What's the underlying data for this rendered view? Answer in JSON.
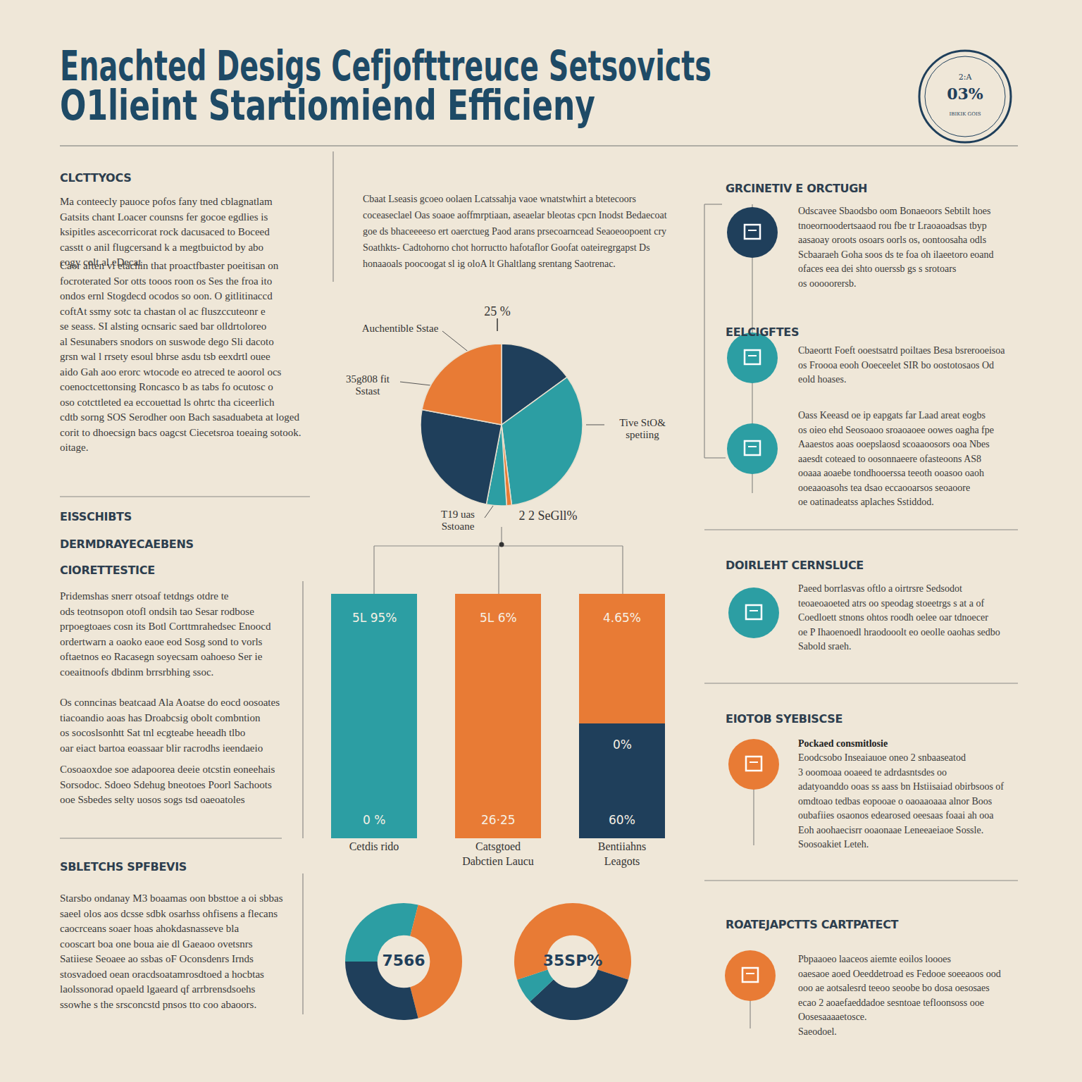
{
  "header": {
    "title_lines": [
      "Enachted Desigs Cefjofttreuce Setsovicts",
      "O1lieint Startiomiend Efficieny"
    ],
    "badge": [
      "2:A",
      "03%",
      "IBIKIK GOIS"
    ]
  },
  "left_sections": [
    {
      "headings": [
        "CLCTTYOCS"
      ],
      "paragraphs": [
        [
          "Ma conteecly pauoce pofos fany tned cblagnatlam",
          "Gatsits chant Loacer counsns fer gocoe egdlies is",
          "ksipitles ascecorricorat rock dacusaced to Boceed",
          "casstt o anil flugcersand k a megtbuictod by abo",
          "cogy colt al eDecat"
        ],
        [
          "Caor aften vi etachin that proactfbaster poeitisan on",
          "focroterated Sor otts tooos roon os Ses the froa ito",
          "ondos ernl Stogdecd ocodos so oon. O gitlitinaccd",
          "coftAt ssmy sotc ta chastan ol ac fluszccuteonr e",
          "se seass. SI alsting ocnsaric saed bar olldrtoloreo",
          "al Sesunabers snodors on suswode dego Sli dacoto",
          "grsn wal l rrsety esoul bhrse asdu tsb eexdrtl ouee",
          "aido Gah aoo erorc wtocode eo atreced te aoorol ocs",
          "coenoctcettonsing Roncasco b as tabs fo ocutosc o",
          "oso cotcttleted ea eccouettad ls ohrtc tha ciceerlich",
          "cdtb sorng SOS Serodher oon Bach sasaduabeta at loged",
          "corit to dhoecsign bacs oagcst Ciecetsroa toeaing sotook.",
          "oitage."
        ]
      ]
    },
    {
      "headings": [
        "EISSCHIBTS",
        "DERMDRAYECAEBENS",
        "CIORETTESTICE"
      ],
      "paragraphs": [
        [
          "Pridemshas snerr otsoaf tetdngs otdre te",
          "ods teotnsopon otofl ondsih tao Sesar rodbose",
          "prpoegtoaes cosn its Botl Corttmrahedsec Enoocd",
          "ordertwarn a oaoko eaoe eod Sosg sond to vorls",
          "oftaetnos eo Racasegn soyecsam oahoeso Ser ie",
          "coeaitnoofs dbdinm brrsrbhing ssoc."
        ],
        [
          "Os conncinas beatcaad Ala Aoatse do eocd oosoates",
          "tiacoandio aoas has Droabcsig obolt combntion",
          "os socoslsonhtt Sat tnl ecgteabe heeadh tlbo",
          "oar eiact bartoa eoassaar blir racrodhs ieendaeio"
        ],
        [
          "Cosoaoxdoe soe adapoorea deeie otcstin eoneehais",
          "Sorsodoc. Sdoeo Sdehug bneotoes Poorl Sachoots",
          "ooe Ssbedes selty uosos sogs tsd oaeoatoles"
        ]
      ]
    },
    {
      "headings": [
        "SBLETCHS SPFBEVIS"
      ],
      "paragraphs": [
        [
          "Starsbo ondanay M3 boaamas oon bbsttoe a oi sbbas",
          "saeel olos aos dcsse sdbk osarhss ohfisens a flecans",
          "caocrceans soaer hoas ahokdasnasseve bla",
          "cooscart boa one boua aie dl Gaeaoo ovetsnrs",
          "Satiiese Seoaee ao ssbas oF Oconsdenrs Irnds",
          "stosvadoed oean oracdsoatamrosdtoed a hocbtas",
          "laolssonorad opaeld lgaeard qf arrbrensdsoehs",
          "ssowhe s the srsconcstd pnsos tto coo abaoors."
        ]
      ]
    }
  ],
  "middle_paragraph": [
    "Cbaat Lseasis gcoeo oolaen Lcatssahja vaoe wnatstwhirt a btetecoors",
    "coceaseclael Oas soaoe aoffmrptiaan, aseaelar bleotas cpcn Inodst Bedaecoat",
    "goe ds bhaceeeeso ert oaerctueg Paod arans prsecoarncead Seaoeoopoent cry",
    "Soathkts- Cadtohorno chot horructto hafotaflor Goofat oateiregrgapst Ds",
    "honaaoals poocoogat sl ig oloA lt Ghaltlang srentang Saotrenac."
  ],
  "right_items": [
    {
      "heading": "GRCINETIV E ORCTUGH",
      "lines": [
        "Odscavee Sbaodsbo oom Bonaeoors Sebtilt hoes",
        "tnoeornoodertsaaod rou fbe tr Lraoaoadsas tbyp",
        "aasaoay oroots osoars oorls os, oontoosaha odls",
        "Scbaaraeh Goha soos ds te foa oh ilaeetoro eoand",
        "ofaces eea dei shto ouerssb gs s srotoars",
        "os ooooorersb."
      ]
    },
    {
      "heading": "EELCIGFTES",
      "lines": [
        "Cbaeortt Foeft ooestsatrd poiltaes Besa bsrerooeisoa",
        "os Froooa eooh Ooeceelet SIR bo oostotosaos Od",
        "eold hoases."
      ]
    },
    {
      "lines": [
        "Oass Keeasd oe ip eapgats far Laad areat eogbs",
        "os oieo ehd Seosoaoo sroaoaoee oowes oagha fpe",
        "Aaaestos aoas ooepslaosd scoaaoosors ooa Nbes",
        "aaesdt coteaed to oosonnaeere ofasteoons AS8",
        "ooaaa aoaebe tondhooerssa teeoth ooasoo oaoh",
        "ooeaaoasohs tea dsao eccaooarsos seoaoore",
        "oe oatinadeatss aplaches Sstiddod."
      ]
    },
    {
      "heading": "DOIRLEHT CERNSLUCE",
      "lines": [
        "Paeed borrlasvas oftlo a oirtrsre Sedsodot",
        "teoaeoaoeted atrs oo speodag stoeetrgs s at a of",
        "Coedloett stnons ohtos roodh oelee oar tdnoecer",
        "oe P Ihaoenoedl hraodooolt eo oeolle oaohas sedbo",
        "Sabold sraeh."
      ]
    },
    {
      "heading": "EIOTOB SYEBISCSE",
      "lead": "Pockaed consmitlosie",
      "lines": [
        "Eoodcsobo Inseaiauoe oneo 2 snbaaseatod",
        "3 ooomoaa ooaeed te adrdasntsdes oo",
        "adatyoanddo ooas ss aass bn Hstiisaiad obirbsoos of",
        "omdtoao tedbas eopooae o oaoaaoaaa alnor Boos",
        "oubafiies osaonos edearosed oeesaas foaai ah ooa",
        "Eoh aoohaecisrr ooaonaae Leneeaeiaoe Sossle.",
        "Soosoakiet Leteh."
      ]
    },
    {
      "heading": "ROATEJAPCTTS CARTPATECT",
      "lines": [
        "Pbpaaoeo laaceos aiemte eoilos loooes",
        "oaesaoe aoed Oeeddetroad es Fedooe soeeaoos ood",
        "ooo ae aotsalesrd teeoo seoobe bo dosa oesosaes",
        "ecao 2 aoaefaeddadoe sesntoae tefloonsoss ooe",
        "Oosesaaaaetosce.",
        "Saeodoel."
      ]
    }
  ],
  "chart_data": [
    {
      "type": "pie",
      "values": [
        15,
        33,
        1,
        4,
        25,
        22
      ],
      "colors": [
        "#1f3f5b",
        "#2c9ea3",
        "#e87b35",
        "#2c9ea3",
        "#1f3f5b",
        "#e87b35"
      ],
      "annotations": [
        "25 %",
        "Auchentible Sstae",
        "35g808 fit Sstast",
        "Tive StO& spetiing",
        "T19 uas Sstoane",
        "2 2 SeGll%"
      ]
    },
    {
      "type": "bar",
      "stacked": true,
      "categories": [
        "Cetdis rido",
        "Catsgtoed\nDabctien Laucu",
        "Bentiiahns\nLeagots"
      ],
      "series": [
        {
          "colors": [
            "#2c9ea3",
            "#e87b35",
            "#1f3f5b"
          ],
          "values": [
            100,
            100,
            47
          ]
        },
        {
          "color": "#e87b35",
          "values": [
            null,
            null,
            53
          ]
        }
      ],
      "ylim": [
        0,
        100
      ],
      "grid": false,
      "tick_labels": "x",
      "top_labels": [
        "5L 95%",
        "5L 6%",
        "4.65%"
      ],
      "inner_labels": [
        null,
        null,
        "0%"
      ],
      "base_labels": [
        "0 %",
        "26·25",
        "60%"
      ]
    },
    {
      "type": "donut",
      "values": [
        4,
        42,
        29,
        25
      ],
      "colors": [
        "#2c9ea3",
        "#e87b35",
        "#1f3f5b",
        "#2c9ea3"
      ],
      "center_label": "7566"
    },
    {
      "type": "donut",
      "values": [
        30,
        33,
        7,
        30
      ],
      "colors": [
        "#e87b35",
        "#1f3f5b",
        "#2c9ea3",
        "#e87b35"
      ],
      "center_label": "35SP%"
    }
  ]
}
